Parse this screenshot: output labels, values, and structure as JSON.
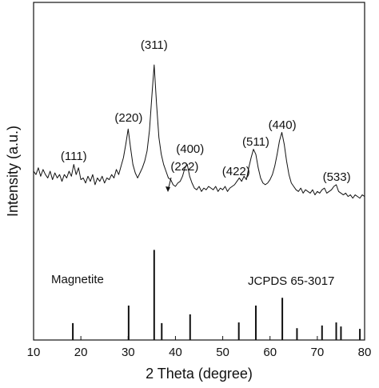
{
  "chart_data": {
    "type": "xrd",
    "x_label": "2 Theta (degree)",
    "y_label": "Intensity (a.u.)",
    "xlim": [
      10,
      80
    ],
    "ylim": [
      0,
      100
    ],
    "xticks": [
      10,
      20,
      30,
      40,
      50,
      60,
      70,
      80
    ],
    "x": [
      10,
      10.5,
      11,
      11.5,
      12,
      12.5,
      13,
      13.5,
      14,
      14.5,
      15,
      15.5,
      16,
      16.5,
      17,
      17.5,
      18,
      18.5,
      19,
      19.5,
      20,
      20.5,
      21,
      21.5,
      22,
      22.5,
      23,
      23.5,
      24,
      24.5,
      25,
      25.5,
      26,
      26.5,
      27,
      27.5,
      28,
      28.5,
      29,
      29.5,
      30,
      30.5,
      31,
      31.5,
      32,
      32.5,
      33,
      33.5,
      34,
      34.5,
      35,
      35.5,
      36,
      36.5,
      37,
      37.5,
      38,
      38.5,
      39,
      39.5,
      40,
      40.5,
      41,
      41.5,
      42,
      42.5,
      43,
      43.5,
      44,
      44.5,
      45,
      45.5,
      46,
      46.5,
      47,
      47.5,
      48,
      48.5,
      49,
      49.5,
      50,
      50.5,
      51,
      51.5,
      52,
      52.5,
      53,
      53.5,
      54,
      54.5,
      55,
      55.5,
      56,
      56.5,
      57,
      57.5,
      58,
      58.5,
      59,
      59.5,
      60,
      60.5,
      61,
      61.5,
      62,
      62.5,
      63,
      63.5,
      64,
      64.5,
      65,
      65.5,
      66,
      66.5,
      67,
      67.5,
      68,
      68.5,
      69,
      69.5,
      70,
      70.5,
      71,
      71.5,
      72,
      72.5,
      73,
      73.5,
      74,
      74.5,
      75,
      75.5,
      76,
      76.5,
      77,
      77.5,
      78,
      78.5,
      79,
      79.5,
      80
    ],
    "series": [
      {
        "color": "#111111",
        "values": [
          50,
          49,
          51,
          48.5,
          50.5,
          49,
          48,
          50,
          47.5,
          49.5,
          48,
          49,
          47,
          49,
          48,
          50,
          48.5,
          52,
          49,
          51,
          47.5,
          48,
          46.5,
          48.5,
          47,
          49,
          46,
          48,
          47,
          48.5,
          46.5,
          48,
          47.5,
          49,
          48,
          50.5,
          49,
          51.5,
          54,
          58,
          62.5,
          57,
          52,
          49.5,
          48,
          49.5,
          51,
          53,
          56,
          62,
          72,
          81.5,
          70,
          60,
          55,
          52,
          50,
          48,
          47.5,
          46,
          45.5,
          46.5,
          47,
          48.5,
          51,
          52,
          48.5,
          46.5,
          45,
          44.5,
          45.5,
          44,
          45,
          44.5,
          45.5,
          45,
          44.5,
          45.5,
          44,
          45,
          44.5,
          45.5,
          44,
          45,
          45.5,
          46,
          47,
          48,
          47,
          48.5,
          47.5,
          51,
          54,
          56.5,
          55,
          51,
          48,
          46.5,
          46,
          46.5,
          47.5,
          49,
          51.5,
          55,
          59,
          61.5,
          58,
          53,
          49,
          46.5,
          45.5,
          44.5,
          44,
          45,
          43.5,
          44.5,
          44,
          43.5,
          44.5,
          43,
          44,
          43.5,
          44.5,
          45,
          43.5,
          44,
          44.5,
          45.5,
          46,
          44,
          43.5,
          43,
          43.5,
          42.5,
          43,
          42,
          43,
          42.5,
          42,
          43,
          42.5
        ]
      }
    ],
    "peak_labels": [
      {
        "label": "(111)",
        "x": 18.5
      },
      {
        "label": "(220)",
        "x": 30.1
      },
      {
        "label": "(311)",
        "x": 35.5
      },
      {
        "label": "(222)",
        "x": 37.2
      },
      {
        "label": "(400)",
        "x": 43.1
      },
      {
        "label": "(422)",
        "x": 53.5
      },
      {
        "label": "(511)",
        "x": 57.0
      },
      {
        "label": "(440)",
        "x": 62.6
      },
      {
        "label": "(533)",
        "x": 74.1
      }
    ],
    "reference": {
      "phase": "Magnetite",
      "name": "JCPDS 65-3017",
      "color": "#111111",
      "x": [
        18.3,
        30.1,
        35.5,
        37.1,
        43.1,
        53.4,
        57.0,
        62.6,
        65.7,
        71.0,
        74.0,
        75.0,
        79.0
      ],
      "values": [
        5,
        10.2,
        26.7,
        5,
        7.6,
        5.2,
        10.2,
        12.5,
        3.5,
        4.3,
        5.2,
        4,
        3.3
      ]
    }
  }
}
